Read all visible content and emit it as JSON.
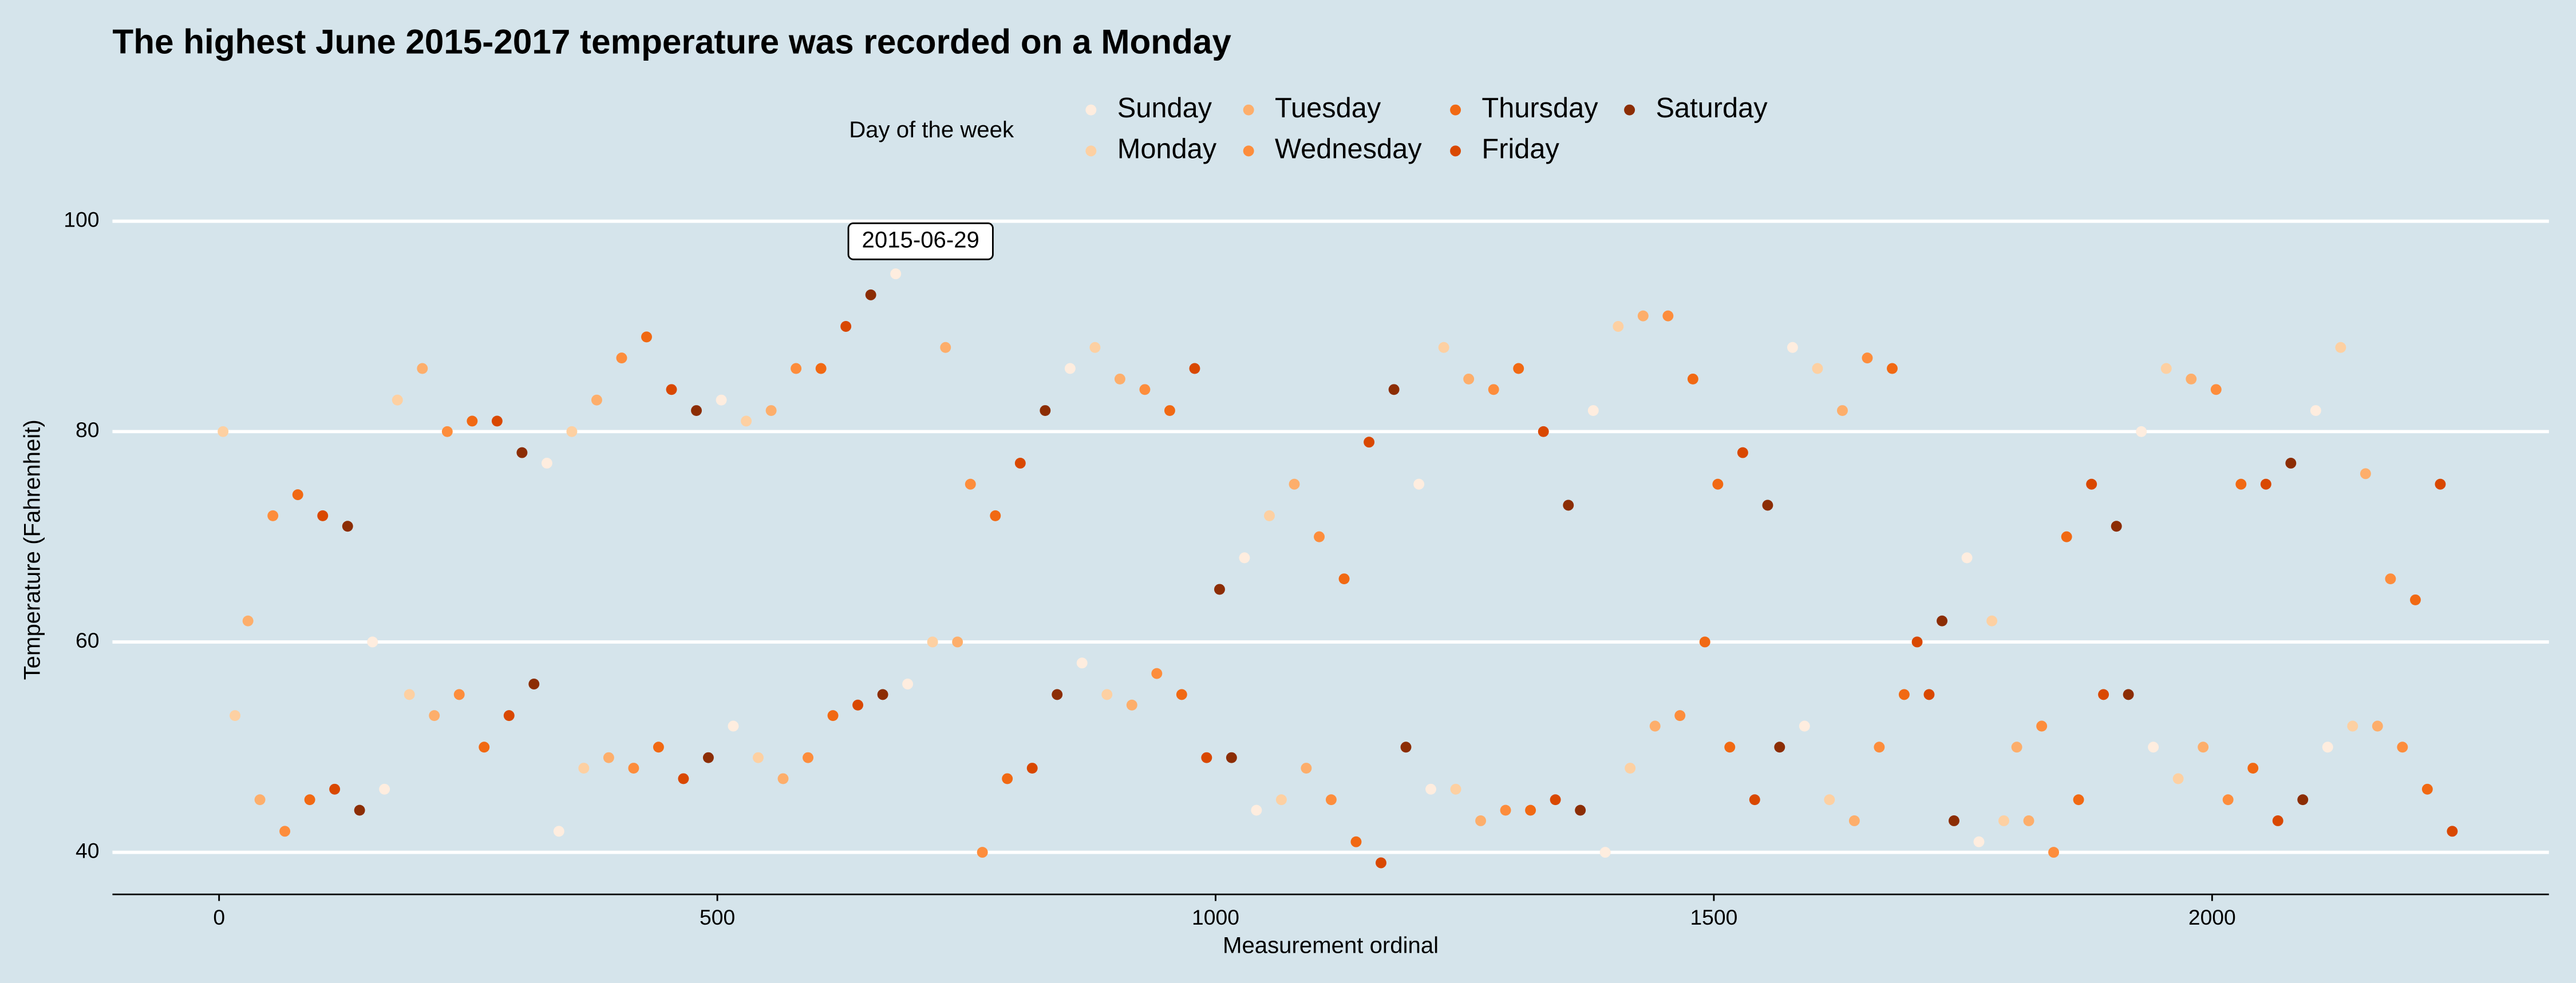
{
  "chart_data": {
    "type": "scatter",
    "title": "The highest June 2015-2017 temperature was recorded on a Monday",
    "xlabel": "Measurement ordinal",
    "ylabel": "Temperature (Fahrenheit)",
    "legend_title": "Day of the week",
    "annotation": "2015-06-29",
    "xlim": [
      -107,
      2338
    ],
    "ylim": [
      36,
      102
    ],
    "xticks": [
      0,
      500,
      1000,
      1500,
      2000
    ],
    "yticks": [
      40,
      60,
      80,
      100
    ],
    "grid": true,
    "series": [
      {
        "name": "Sunday",
        "color": "#feeddf",
        "x": [
          154,
          166,
          329,
          341,
          504,
          516,
          679,
          691,
          854,
          866,
          1029,
          1041,
          1204,
          1216,
          1379,
          1391,
          1579,
          1591,
          1754,
          1766,
          1929,
          1941,
          2104,
          2116
        ],
        "values": [
          60,
          46,
          77,
          42,
          83,
          52,
          95,
          56,
          86,
          58,
          68,
          44,
          75,
          46,
          82,
          40,
          88,
          52,
          68,
          41,
          80,
          50,
          82,
          50
        ]
      },
      {
        "name": "Monday",
        "color": "#fdd0a2",
        "x": [
          4,
          16,
          179,
          191,
          354,
          366,
          529,
          541,
          704,
          716,
          879,
          891,
          1054,
          1066,
          1229,
          1241,
          1404,
          1416,
          1604,
          1616,
          1779,
          1791,
          1954,
          1966,
          2129,
          2141
        ],
        "values": [
          80,
          53,
          83,
          55,
          80,
          48,
          81,
          49,
          97,
          60,
          88,
          55,
          72,
          45,
          88,
          46,
          90,
          48,
          86,
          45,
          62,
          43,
          86,
          47,
          88,
          52
        ]
      },
      {
        "name": "Tuesday",
        "color": "#fdae6b",
        "x": [
          29,
          41,
          204,
          216,
          379,
          391,
          554,
          566,
          729,
          741,
          904,
          916,
          1079,
          1091,
          1254,
          1266,
          1429,
          1441,
          1629,
          1641,
          1804,
          1816,
          1979,
          1991,
          2154,
          2166
        ],
        "values": [
          62,
          45,
          86,
          53,
          83,
          49,
          82,
          47,
          88,
          60,
          85,
          54,
          75,
          48,
          85,
          43,
          91,
          52,
          82,
          43,
          50,
          43,
          85,
          50,
          76,
          52
        ]
      },
      {
        "name": "Wednesday",
        "color": "#fd8d3c",
        "x": [
          54,
          66,
          229,
          241,
          404,
          416,
          579,
          591,
          754,
          766,
          929,
          941,
          1104,
          1116,
          1279,
          1291,
          1454,
          1466,
          1654,
          1666,
          1829,
          1841,
          2004,
          2016,
          2179,
          2191
        ],
        "values": [
          72,
          42,
          80,
          55,
          87,
          48,
          86,
          49,
          75,
          40,
          84,
          57,
          70,
          45,
          84,
          44,
          91,
          53,
          87,
          50,
          52,
          40,
          84,
          45,
          66,
          50
        ]
      },
      {
        "name": "Thursday",
        "color": "#f16913",
        "x": [
          79,
          91,
          254,
          266,
          429,
          441,
          604,
          616,
          779,
          791,
          954,
          966,
          1129,
          1141,
          1304,
          1316,
          1479,
          1491,
          1504,
          1516,
          1679,
          1691,
          1854,
          1866,
          2029,
          2041,
          2204,
          2216
        ],
        "values": [
          74,
          45,
          81,
          50,
          89,
          50,
          86,
          53,
          72,
          47,
          82,
          55,
          66,
          41,
          86,
          44,
          85,
          60,
          75,
          50,
          86,
          55,
          70,
          45,
          75,
          48,
          64,
          46
        ]
      },
      {
        "name": "Friday",
        "color": "#d94801",
        "x": [
          104,
          116,
          279,
          291,
          454,
          466,
          629,
          641,
          804,
          816,
          979,
          991,
          1154,
          1166,
          1329,
          1341,
          1529,
          1541,
          1704,
          1716,
          1879,
          1891,
          2054,
          2066,
          2229,
          2241
        ],
        "values": [
          72,
          46,
          81,
          53,
          84,
          47,
          90,
          54,
          77,
          48,
          86,
          49,
          79,
          39,
          80,
          45,
          78,
          45,
          60,
          55,
          75,
          55,
          75,
          43,
          75,
          42
        ]
      },
      {
        "name": "Saturday",
        "color": "#8c2d04",
        "x": [
          129,
          141,
          304,
          316,
          479,
          491,
          654,
          666,
          829,
          841,
          1004,
          1016,
          1179,
          1191,
          1354,
          1366,
          1554,
          1566,
          1729,
          1741,
          1904,
          1916,
          2079,
          2091
        ],
        "values": [
          71,
          44,
          78,
          56,
          82,
          49,
          93,
          55,
          82,
          55,
          65,
          49,
          84,
          50,
          73,
          44,
          73,
          50,
          62,
          43,
          71,
          55,
          77,
          45
        ]
      }
    ]
  }
}
